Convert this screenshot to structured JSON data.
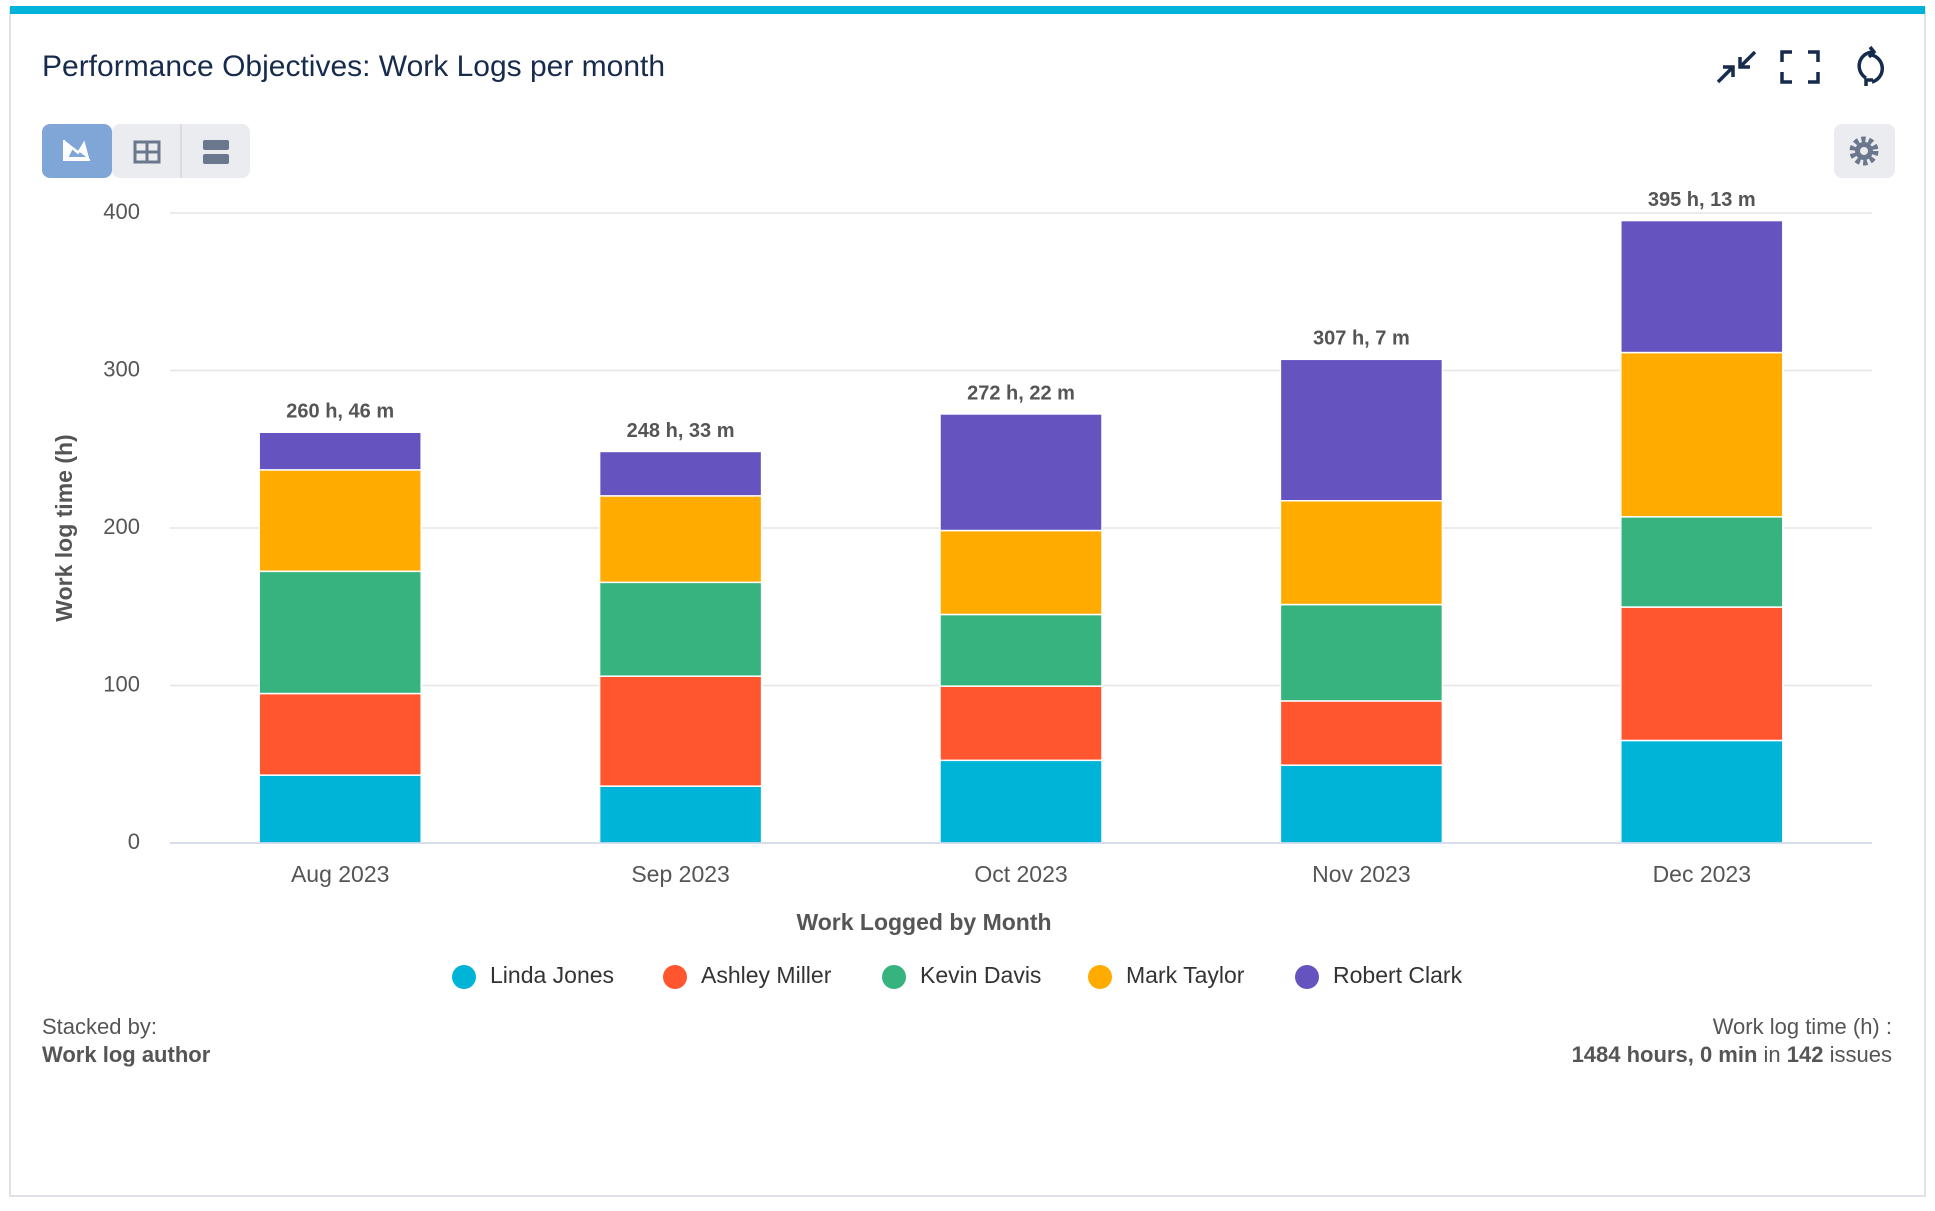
{
  "header": {
    "title": "Performance Objectives: Work Logs per month"
  },
  "chart_data": {
    "type": "stacked_bar",
    "x_label": "Work Logged by Month",
    "y_label": "Work log time (h)",
    "categories": [
      "Aug 2023",
      "Sep 2023",
      "Oct 2023",
      "Nov 2023",
      "Dec 2023"
    ],
    "series": [
      {
        "name": "Linda Jones",
        "color": "#00b4d8",
        "values": [
          43.1,
          36.1,
          52.5,
          49.4,
          65.1
        ]
      },
      {
        "name": "Ashley Miller",
        "color": "#ff5630",
        "values": [
          51.8,
          69.8,
          47.1,
          40.8,
          84.7
        ]
      },
      {
        "name": "Kevin Davis",
        "color": "#36b37e",
        "values": [
          77.6,
          59.6,
          45.5,
          61.2,
          57.3
        ]
      },
      {
        "name": "Mark Taylor",
        "color": "#ffab00",
        "values": [
          64.4,
          54.9,
          53.3,
          65.9,
          104.3
        ]
      },
      {
        "name": "Robert Clark",
        "color": "#6554c0",
        "values": [
          23.9,
          28.2,
          74.0,
          89.8,
          83.8
        ]
      }
    ],
    "totals": [
      260.77,
      248.55,
      272.37,
      307.12,
      395.22
    ],
    "total_labels": [
      "260 h, 46 m",
      "248 h, 33 m",
      "272 h, 22 m",
      "307 h, 7 m",
      "395 h, 13 m"
    ],
    "ylim": [
      0,
      400
    ],
    "yticks": [
      0,
      100,
      200,
      300,
      400
    ],
    "grid": true,
    "legend": "bottom"
  },
  "footer": {
    "stacked_by_label": "Stacked by:",
    "stacked_by_value": "Work log author",
    "summary_label": "Work log time (h) :",
    "summary_hours": "1484 hours, 0 min",
    "summary_in": "in",
    "summary_count": "142",
    "summary_issues": "issues"
  }
}
